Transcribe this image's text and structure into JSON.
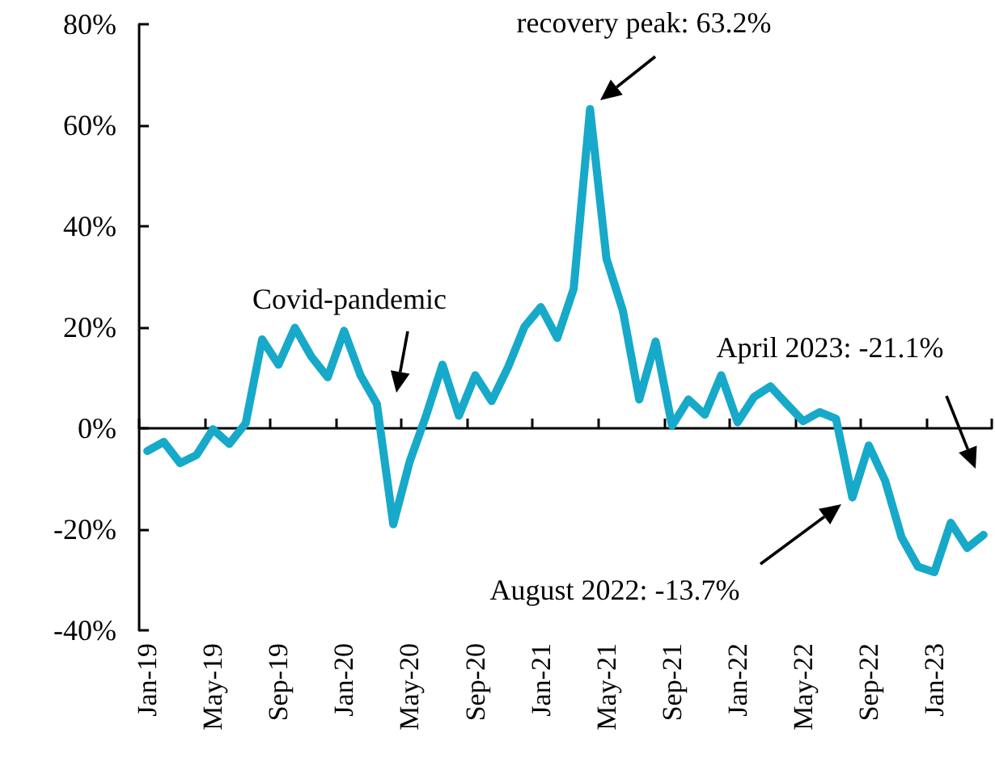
{
  "chart_data": {
    "type": "line",
    "categories": [
      "Jan-19",
      null,
      null,
      null,
      "May-19",
      null,
      null,
      null,
      "Sep-19",
      null,
      null,
      null,
      "Jan-20",
      null,
      null,
      null,
      "May-20",
      null,
      null,
      null,
      "Sep-20",
      null,
      null,
      null,
      "Jan-21",
      null,
      null,
      null,
      "May-21",
      null,
      null,
      null,
      "Sep-21",
      null,
      null,
      null,
      "Jan-22",
      null,
      null,
      null,
      "May-22",
      null,
      null,
      null,
      "Sep-22",
      null,
      null,
      null,
      "Jan-23",
      null,
      null,
      null
    ],
    "series": [
      {
        "color": "#17a9c9",
        "values": [
          -4.5,
          -2.7,
          -6.9,
          -5.3,
          -0.2,
          -3.1,
          1,
          17.6,
          12.6,
          19.9,
          14.2,
          10.1,
          19.3,
          10.5,
          4.8,
          -19,
          -6.6,
          2.5,
          12.6,
          2.5,
          10.5,
          5.4,
          12.1,
          20.1,
          24,
          17.9,
          27.6,
          63.2,
          33.6,
          23.3,
          5.7,
          17.2,
          0.5,
          5.7,
          2.7,
          10.5,
          1.2,
          6.2,
          8.3,
          4.8,
          1.4,
          3.2,
          1.9,
          -13.7,
          -3.4,
          -10.4,
          -21.6,
          -27.4,
          -28.5,
          -18.7,
          -23.7,
          -21.1
        ]
      }
    ],
    "ylim": [
      -40,
      80
    ],
    "yticks": [
      {
        "value": -40,
        "label": "-40%"
      },
      {
        "value": -20,
        "label": "-20%"
      },
      {
        "value": 0,
        "label": "0%"
      },
      {
        "value": 20,
        "label": "20%"
      },
      {
        "value": 40,
        "label": "40%"
      },
      {
        "value": 60,
        "label": "60%"
      },
      {
        "value": 80,
        "label": "80%"
      }
    ],
    "annotations": [
      "Covid-pandemic",
      "recovery peak: 63.2%",
      "August 2022: -13.7%",
      "April 2023: -21.1%"
    ],
    "marker": "none",
    "line_style": "solid"
  }
}
